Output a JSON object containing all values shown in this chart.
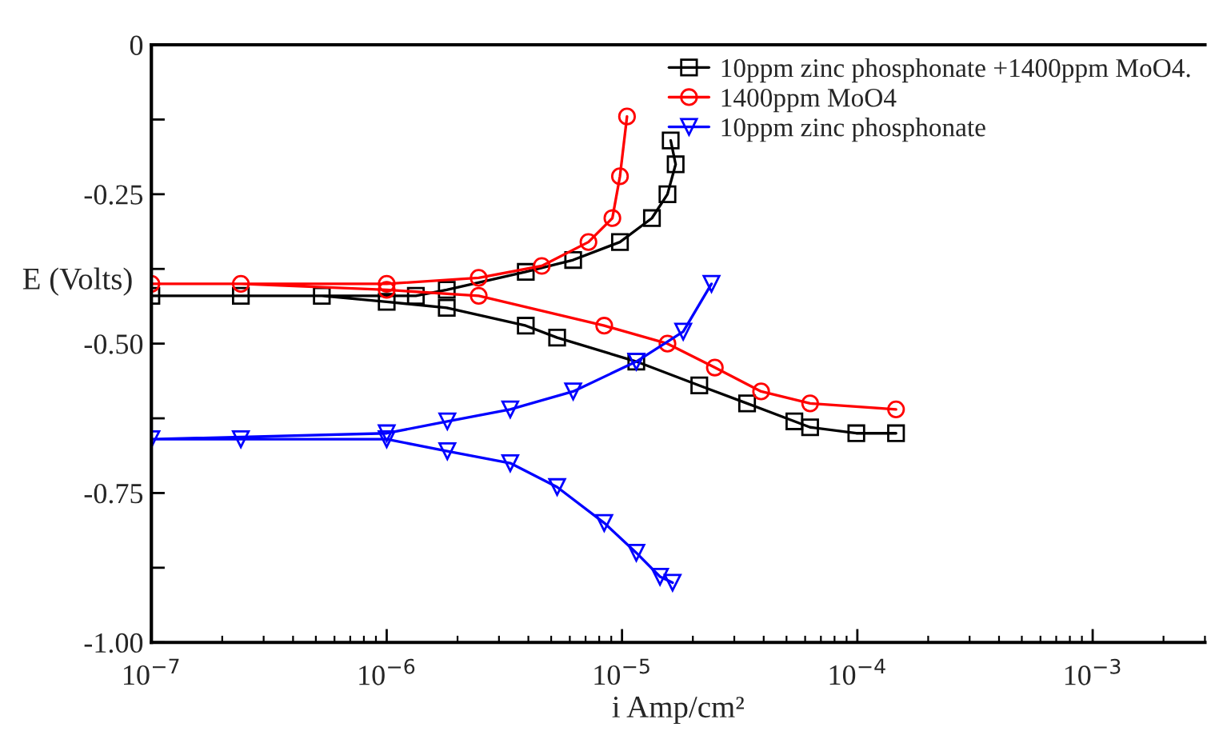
{
  "chart_data": {
    "type": "line",
    "xlabel": "i Amp/cm²",
    "ylabel": "E (Volts)",
    "log": "x",
    "xlim": [
      1e-07,
      0.003
    ],
    "ylim": [
      -1.0,
      0
    ],
    "xticks": [
      {
        "value": 1e-07,
        "label": "10$^{−7}$"
      },
      {
        "value": 1e-06,
        "label": "10$^{−6}$"
      },
      {
        "value": 1e-05,
        "label": "10$^{−5}$"
      },
      {
        "value": 0.0001,
        "label": "10$^{−4}$"
      },
      {
        "value": 0.001,
        "label": "10$^{−3}$"
      }
    ],
    "yticks": [
      0,
      {
        "value": -0.125,
        "label": null
      },
      {
        "value": -0.25,
        "label": "-0.25"
      },
      {
        "value": -0.375,
        "label": null
      },
      {
        "value": -0.5,
        "label": "-0.50"
      },
      {
        "value": -0.625,
        "label": null
      },
      {
        "value": -0.75,
        "label": "-0.75"
      },
      {
        "value": -0.875,
        "label": null
      },
      {
        "value": -1.0,
        "label": "-1.00"
      }
    ],
    "grid": false,
    "legend": "top right",
    "line_style": "solid",
    "series": [
      {
        "name": "10ppm zinc phosphonate +1400ppm MoO4.",
        "color": "#000000",
        "marker": "square",
        "x": [
          0.000146,
          9.9e-05,
          6.3e-05,
          5.4e-05,
          3.4e-05,
          2.13e-05,
          1.15e-05,
          5.3e-06,
          3.9e-06,
          1.8e-06,
          1e-06,
          5.3e-07,
          2.4e-07,
          1e-07,
          1.33e-06,
          1.8e-06,
          3.9e-06,
          6.2e-06,
          9.8e-06,
          1.34e-05,
          1.56e-05,
          1.69e-05,
          1.61e-05
        ],
        "values": [
          -0.65,
          -0.65,
          -0.64,
          -0.63,
          -0.6,
          -0.57,
          -0.53,
          -0.49,
          -0.47,
          -0.44,
          -0.43,
          -0.42,
          -0.42,
          -0.42,
          -0.42,
          -0.41,
          -0.38,
          -0.36,
          -0.33,
          -0.29,
          -0.25,
          -0.2,
          -0.16
        ]
      },
      {
        "name": "1400ppm MoO4",
        "color": "#ff0000",
        "marker": "circle",
        "x": [
          0.000146,
          6.3e-05,
          3.9e-05,
          2.48e-05,
          1.56e-05,
          8.4e-06,
          2.46e-06,
          1e-06,
          2.4e-07,
          1e-07,
          1e-06,
          2.46e-06,
          4.56e-06,
          7.2e-06,
          9.1e-06,
          9.8e-06,
          1.05e-05
        ],
        "values": [
          -0.61,
          -0.6,
          -0.58,
          -0.54,
          -0.5,
          -0.47,
          -0.42,
          -0.41,
          -0.4,
          -0.4,
          -0.4,
          -0.39,
          -0.37,
          -0.33,
          -0.29,
          -0.22,
          -0.12
        ]
      },
      {
        "name": "10ppm zinc phosphonate",
        "color": "#0000ff",
        "marker": "triangle",
        "x": [
          1.64e-05,
          1.45e-05,
          1.15e-05,
          8.4e-06,
          5.3e-06,
          3.35e-06,
          1.81e-06,
          1e-06,
          2.4e-07,
          1e-07,
          1e-06,
          1.81e-06,
          3.35e-06,
          6.2e-06,
          1.15e-05,
          1.82e-05,
          2.4e-05
        ],
        "values": [
          -0.9,
          -0.89,
          -0.85,
          -0.8,
          -0.74,
          -0.7,
          -0.68,
          -0.66,
          -0.66,
          -0.66,
          -0.65,
          -0.63,
          -0.61,
          -0.58,
          -0.53,
          -0.48,
          -0.4
        ]
      }
    ]
  }
}
